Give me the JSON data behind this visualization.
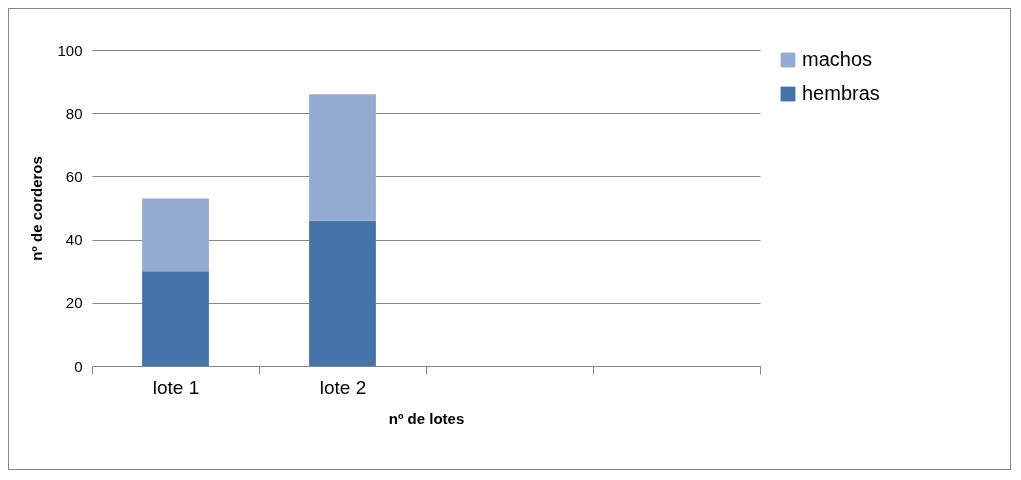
{
  "chart_data": {
    "type": "bar",
    "stacked": true,
    "xlabel": "nº de lotes",
    "ylabel": "nº de corderos",
    "categories": [
      "lote 1",
      "lote 2",
      null,
      null
    ],
    "series": [
      {
        "name": "hembras",
        "color": "#4674a9",
        "values": [
          30,
          46,
          null,
          null
        ]
      },
      {
        "name": "machos",
        "color": "#94abd1",
        "values": [
          23,
          40,
          null,
          null
        ]
      }
    ],
    "ylim": [
      0,
      100
    ],
    "yticks": [
      0,
      20,
      40,
      60,
      80,
      100
    ],
    "grid": "y",
    "legend": "right"
  }
}
